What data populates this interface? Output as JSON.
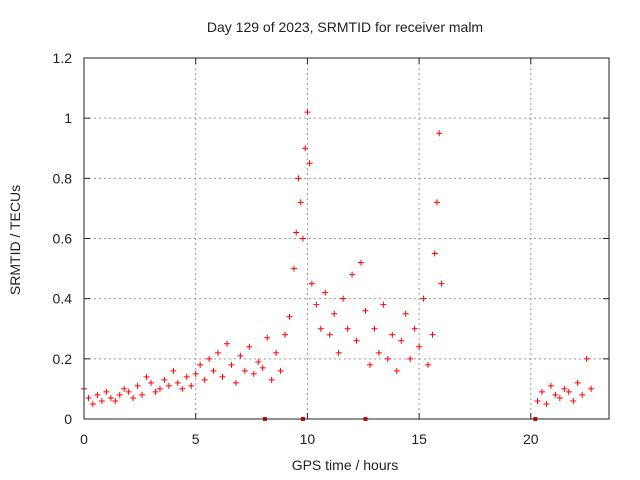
{
  "chart_data": {
    "type": "scatter",
    "title": "Day 129 of 2023, SRMTID for receiver malm",
    "xlabel": "GPS time / hours",
    "ylabel": "SRMTID / TECUs",
    "xlim": [
      0,
      23.5
    ],
    "ylim": [
      0,
      1.2
    ],
    "xticks": [
      0,
      5,
      10,
      15,
      20
    ],
    "xtick_labels": [
      "0",
      "5",
      "10",
      "15",
      "20"
    ],
    "yticks": [
      0,
      0.2,
      0.4,
      0.6,
      0.8,
      1.0,
      1.2
    ],
    "ytick_labels": [
      "0",
      "0.2",
      "0.4",
      "0.6",
      "0.8",
      "1",
      "1.2"
    ],
    "grid": true,
    "marker": "+",
    "color": "#ff0000",
    "zero_markers": [
      8.1,
      9.8,
      12.6,
      20.2
    ],
    "series": [
      {
        "name": "SRMTID",
        "x": [
          0.0,
          0.2,
          0.4,
          0.6,
          0.8,
          1.0,
          1.2,
          1.4,
          1.6,
          1.8,
          2.0,
          2.2,
          2.4,
          2.6,
          2.8,
          3.0,
          3.2,
          3.4,
          3.6,
          3.8,
          4.0,
          4.2,
          4.4,
          4.6,
          4.8,
          5.0,
          5.2,
          5.4,
          5.6,
          5.8,
          6.0,
          6.2,
          6.4,
          6.6,
          6.8,
          7.0,
          7.2,
          7.4,
          7.6,
          7.8,
          8.0,
          8.2,
          8.4,
          8.6,
          8.8,
          9.0,
          9.2,
          9.4,
          9.5,
          9.6,
          9.7,
          9.8,
          9.9,
          10.0,
          10.1,
          10.2,
          10.4,
          10.6,
          10.8,
          11.0,
          11.2,
          11.4,
          11.6,
          11.8,
          12.0,
          12.2,
          12.4,
          12.6,
          12.8,
          13.0,
          13.2,
          13.4,
          13.6,
          13.8,
          14.0,
          14.2,
          14.4,
          14.6,
          14.8,
          15.0,
          15.2,
          15.4,
          15.6,
          15.7,
          15.8,
          15.9,
          16.0,
          20.3,
          20.5,
          20.7,
          20.9,
          21.1,
          21.3,
          21.5,
          21.7,
          21.9,
          22.1,
          22.3,
          22.5,
          22.7
        ],
        "y": [
          0.1,
          0.07,
          0.05,
          0.08,
          0.06,
          0.09,
          0.07,
          0.06,
          0.08,
          0.1,
          0.09,
          0.07,
          0.11,
          0.08,
          0.14,
          0.12,
          0.09,
          0.1,
          0.13,
          0.11,
          0.16,
          0.12,
          0.1,
          0.14,
          0.11,
          0.15,
          0.18,
          0.13,
          0.2,
          0.16,
          0.22,
          0.14,
          0.25,
          0.18,
          0.12,
          0.21,
          0.16,
          0.24,
          0.15,
          0.19,
          0.17,
          0.27,
          0.13,
          0.22,
          0.16,
          0.28,
          0.34,
          0.5,
          0.62,
          0.8,
          0.72,
          0.6,
          0.9,
          1.02,
          0.85,
          0.45,
          0.38,
          0.3,
          0.42,
          0.28,
          0.35,
          0.22,
          0.4,
          0.3,
          0.48,
          0.26,
          0.52,
          0.36,
          0.18,
          0.3,
          0.22,
          0.38,
          0.2,
          0.28,
          0.16,
          0.26,
          0.35,
          0.2,
          0.3,
          0.24,
          0.4,
          0.18,
          0.28,
          0.55,
          0.72,
          0.95,
          0.45,
          0.06,
          0.09,
          0.05,
          0.11,
          0.08,
          0.07,
          0.1,
          0.09,
          0.06,
          0.12,
          0.08,
          0.2,
          0.1
        ]
      }
    ]
  }
}
